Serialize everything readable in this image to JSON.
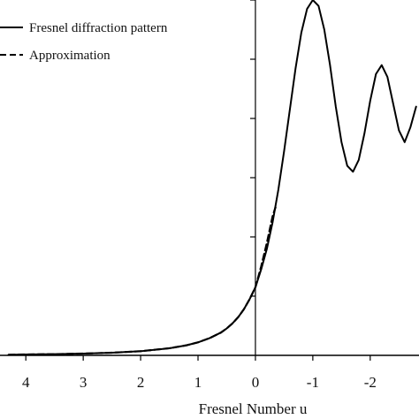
{
  "chart_data": {
    "type": "line",
    "xlabel": "Fresnel Number  u",
    "x_axis_reversed": true,
    "xlim": [
      4.45,
      -2.85
    ],
    "ylim": [
      0,
      1.2
    ],
    "x_ticks": [
      4,
      3,
      2,
      1,
      0,
      -1,
      -2,
      -3
    ],
    "x_tick_labels": [
      "4",
      "3",
      "2",
      "1",
      "0",
      "-1",
      "-2",
      "-"
    ],
    "y_ticks": [
      0,
      0.2,
      0.4,
      0.6,
      0.8,
      1.0,
      1.2
    ],
    "y_tick_labels_visible": false,
    "grid": false,
    "legend_placement": "top-left",
    "series": [
      {
        "name": "Fresnel diffraction pattern",
        "line_style": "solid",
        "color": "#000000",
        "x": [
          4.3,
          4.0,
          3.5,
          3.0,
          2.5,
          2.0,
          1.5,
          1.2,
          1.0,
          0.8,
          0.6,
          0.5,
          0.4,
          0.3,
          0.2,
          0.1,
          0.0,
          -0.1,
          -0.2,
          -0.3,
          -0.4,
          -0.5,
          -0.6,
          -0.7,
          -0.8,
          -0.9,
          -1.0,
          -1.1,
          -1.2,
          -1.3,
          -1.4,
          -1.5,
          -1.6,
          -1.7,
          -1.8,
          -1.9,
          -2.0,
          -2.1,
          -2.2,
          -2.3,
          -2.4,
          -2.5,
          -2.6,
          -2.7,
          -2.8
        ],
        "y": [
          0.002,
          0.003,
          0.004,
          0.006,
          0.009,
          0.014,
          0.024,
          0.034,
          0.044,
          0.058,
          0.077,
          0.091,
          0.108,
          0.129,
          0.156,
          0.19,
          0.23,
          0.29,
          0.36,
          0.45,
          0.56,
          0.69,
          0.83,
          0.97,
          1.09,
          1.17,
          1.2,
          1.18,
          1.1,
          0.98,
          0.84,
          0.72,
          0.64,
          0.62,
          0.66,
          0.75,
          0.86,
          0.95,
          0.98,
          0.94,
          0.85,
          0.76,
          0.72,
          0.77,
          0.84
        ]
      },
      {
        "name": "Approximation",
        "line_style": "dashed",
        "color": "#000000",
        "x": [
          4.3,
          4.0,
          3.5,
          3.0,
          2.5,
          2.0,
          1.5,
          1.2,
          1.0,
          0.8,
          0.6,
          0.5,
          0.4,
          0.3,
          0.2,
          0.1,
          0.0,
          -0.1,
          -0.2,
          -0.3,
          -0.35
        ],
        "y": [
          0.002,
          0.003,
          0.004,
          0.006,
          0.009,
          0.014,
          0.024,
          0.034,
          0.044,
          0.058,
          0.077,
          0.091,
          0.108,
          0.129,
          0.156,
          0.19,
          0.23,
          0.3,
          0.38,
          0.47,
          0.5
        ]
      }
    ]
  }
}
